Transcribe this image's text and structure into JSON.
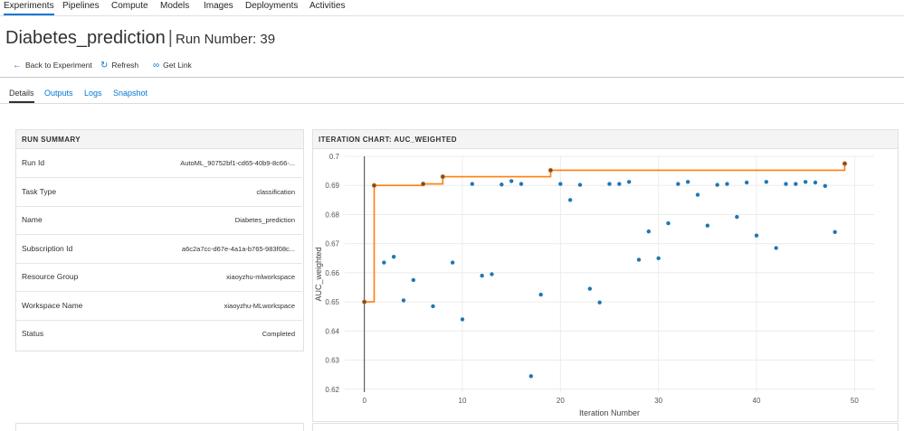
{
  "topnav": [
    "Experiments",
    "Pipelines",
    "Compute",
    "Models",
    "Images",
    "Deployments",
    "Activities"
  ],
  "page": {
    "title": "Diabetes_prediction",
    "separator": "|",
    "run_label": "Run Number: 39"
  },
  "commands": {
    "back": "Back to Experiment",
    "refresh": "Refresh",
    "get_link": "Get Link"
  },
  "tabs": [
    "Details",
    "Outputs",
    "Logs",
    "Snapshot"
  ],
  "run_summary": {
    "title": "RUN SUMMARY",
    "rows": [
      {
        "key": "Run Id",
        "value": "AutoML_90752bf1-cd65-40b9-8c66-..."
      },
      {
        "key": "Task Type",
        "value": "classification"
      },
      {
        "key": "Name",
        "value": "Diabetes_prediction"
      },
      {
        "key": "Subscription Id",
        "value": "a6c2a7cc-d67e-4a1a-b765-983f08c..."
      },
      {
        "key": "Resource Group",
        "value": "xiaoyzhu-mlworkspace"
      },
      {
        "key": "Workspace Name",
        "value": "xiaoyzhu-MLworkspace"
      },
      {
        "key": "Status",
        "value": "Completed"
      }
    ]
  },
  "chart_panel": {
    "title": "ITERATION CHART: AUC_WEIGHTED"
  },
  "colors": {
    "accent": "#0078d4",
    "point": "#1f77b4",
    "best_line": "#ff7f0e"
  },
  "chart_data": {
    "type": "scatter",
    "xlabel": "Iteration Number",
    "ylabel": "AUC_weighted",
    "xlim": [
      -2,
      52
    ],
    "ylim": [
      0.619,
      0.7
    ],
    "xticks": [
      0,
      10,
      20,
      30,
      40,
      50
    ],
    "yticks": [
      0.62,
      0.63,
      0.64,
      0.65,
      0.66,
      0.67,
      0.68,
      0.69,
      0.7
    ],
    "ytick_labels": [
      "0.62",
      "0.63",
      "0.64",
      "0.65",
      "0.66",
      "0.67",
      "0.68",
      "0.69",
      "0.7"
    ],
    "grid": true,
    "points": [
      [
        0,
        0.65
      ],
      [
        1,
        0.69
      ],
      [
        2,
        0.6635
      ],
      [
        3,
        0.6655
      ],
      [
        4,
        0.6505
      ],
      [
        5,
        0.6575
      ],
      [
        6,
        0.6905
      ],
      [
        7,
        0.6485
      ],
      [
        8,
        0.693
      ],
      [
        9,
        0.6635
      ],
      [
        10,
        0.644
      ],
      [
        11,
        0.6905
      ],
      [
        12,
        0.659
      ],
      [
        13,
        0.6595
      ],
      [
        14,
        0.6903
      ],
      [
        15,
        0.6915
      ],
      [
        16,
        0.6905
      ],
      [
        17,
        0.6245
      ],
      [
        18,
        0.6525
      ],
      [
        19,
        0.6952
      ],
      [
        20,
        0.6905
      ],
      [
        21,
        0.685
      ],
      [
        22,
        0.6902
      ],
      [
        23,
        0.6545
      ],
      [
        24,
        0.6498
      ],
      [
        25,
        0.6905
      ],
      [
        26,
        0.6905
      ],
      [
        27,
        0.6912
      ],
      [
        28,
        0.6645
      ],
      [
        29,
        0.6742
      ],
      [
        30,
        0.665
      ],
      [
        31,
        0.677
      ],
      [
        32,
        0.6905
      ],
      [
        33,
        0.6912
      ],
      [
        34,
        0.6868
      ],
      [
        35,
        0.6762
      ],
      [
        36,
        0.6902
      ],
      [
        37,
        0.6905
      ],
      [
        38,
        0.6792
      ],
      [
        39,
        0.691
      ],
      [
        40,
        0.6728
      ],
      [
        41,
        0.6912
      ],
      [
        42,
        0.6685
      ],
      [
        43,
        0.6905
      ],
      [
        44,
        0.6905
      ],
      [
        45,
        0.6912
      ],
      [
        46,
        0.691
      ],
      [
        47,
        0.6898
      ],
      [
        48,
        0.674
      ],
      [
        49,
        0.6975
      ]
    ],
    "best_series": [
      [
        0,
        0.65
      ],
      [
        1,
        0.69
      ],
      [
        6,
        0.6905
      ],
      [
        8,
        0.693
      ],
      [
        19,
        0.6952
      ],
      [
        49,
        0.6975
      ]
    ]
  }
}
